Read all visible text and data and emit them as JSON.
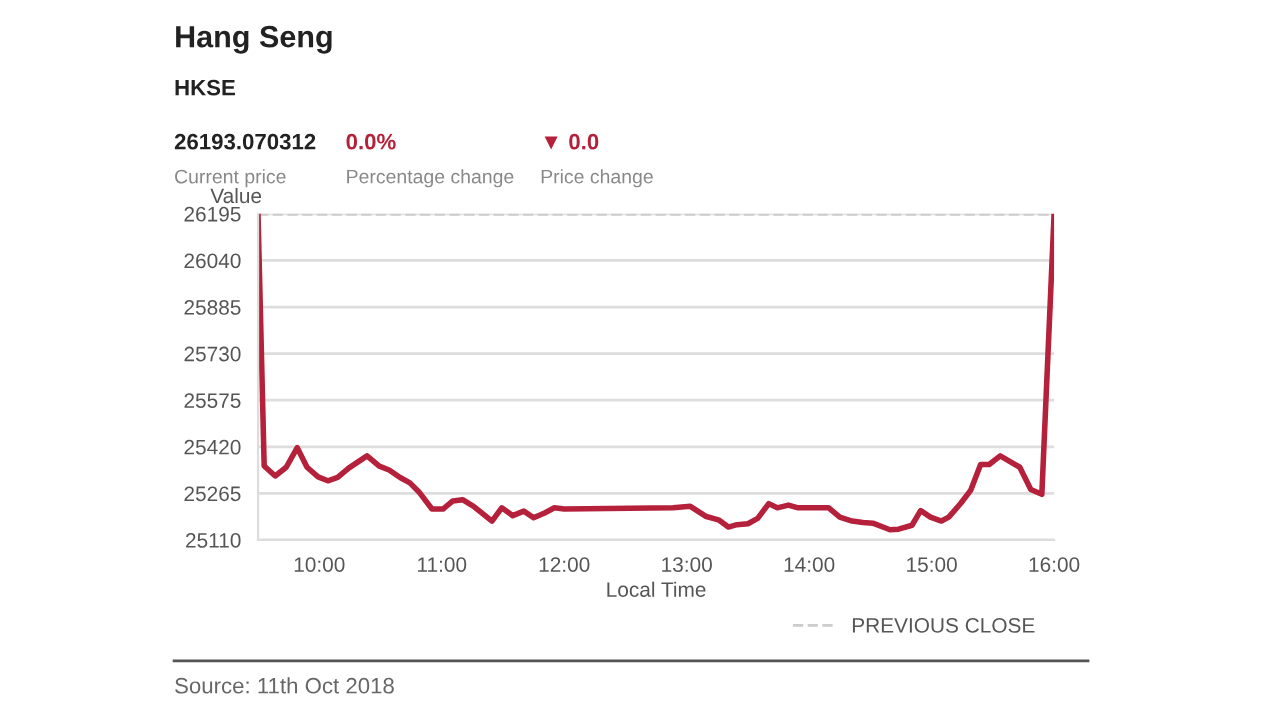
{
  "chart_data": {
    "type": "line",
    "title": "Hang Seng",
    "subtitle": "HKSE",
    "annotations": [
      "26193.070312",
      "Current price",
      "0.0%",
      "Percentage change",
      "▼ 0.0",
      "Price change",
      "Source: 11th Oct 2018"
    ],
    "ylabel": "Value",
    "xlabel": "Local Time",
    "x": [
      9.5,
      9.55,
      9.64,
      9.73,
      9.82,
      9.9,
      9.99,
      10.07,
      10.15,
      10.24,
      10.39,
      10.49,
      10.57,
      10.66,
      10.74,
      10.82,
      10.92,
      11.01,
      11.09,
      11.17,
      11.26,
      11.41,
      11.49,
      11.58,
      11.67,
      11.75,
      11.84,
      11.92,
      12.0,
      12.89,
      13.03,
      13.16,
      13.26,
      13.34,
      13.41,
      13.5,
      13.58,
      13.67,
      13.74,
      13.83,
      13.91,
      14.16,
      14.25,
      14.35,
      14.44,
      14.52,
      14.66,
      14.73,
      14.84,
      14.91,
      14.99,
      15.08,
      15.14,
      15.24,
      15.32,
      15.4,
      15.47,
      15.56,
      15.72,
      15.81,
      15.9,
      16.0
    ],
    "series": [
      {
        "color": "#b5213a",
        "values": [
          26188,
          25356,
          25323,
          25352,
          25417,
          25352,
          25320,
          25307,
          25318,
          25349,
          25390,
          25356,
          25343,
          25318,
          25300,
          25267,
          25213,
          25213,
          25240,
          25244,
          25222,
          25173,
          25217,
          25191,
          25206,
          25184,
          25200,
          25217,
          25213,
          25217,
          25222,
          25188,
          25177,
          25153,
          25161,
          25164,
          25182,
          25231,
          25217,
          25226,
          25217,
          25217,
          25186,
          25173,
          25168,
          25166,
          25144,
          25146,
          25159,
          25208,
          25186,
          25173,
          25186,
          25233,
          25276,
          25361,
          25361,
          25390,
          25352,
          25278,
          25262,
          26193
        ]
      }
    ],
    "xlim": [
      9.5,
      16.0
    ],
    "ylim": [
      25110,
      26195
    ],
    "xticks": [
      {
        "value": 10,
        "label": "10:00"
      },
      {
        "value": 11,
        "label": "11:00"
      },
      {
        "value": 12,
        "label": "12:00"
      },
      {
        "value": 13,
        "label": "13:00"
      },
      {
        "value": 14,
        "label": "14:00"
      },
      {
        "value": 15,
        "label": "15:00"
      },
      {
        "value": 16,
        "label": "16:00"
      }
    ],
    "yticks": [
      25110,
      25265,
      25420,
      25575,
      25730,
      25885,
      26040,
      26195
    ],
    "ref_lines": [
      {
        "axis": "y",
        "value": 26193.07,
        "label": "PREVIOUS CLOSE",
        "color": "#cccccc",
        "line_style": "dashed"
      }
    ],
    "grid": "y",
    "legend": "bottom right",
    "marker": "none",
    "line_style": "solid"
  }
}
